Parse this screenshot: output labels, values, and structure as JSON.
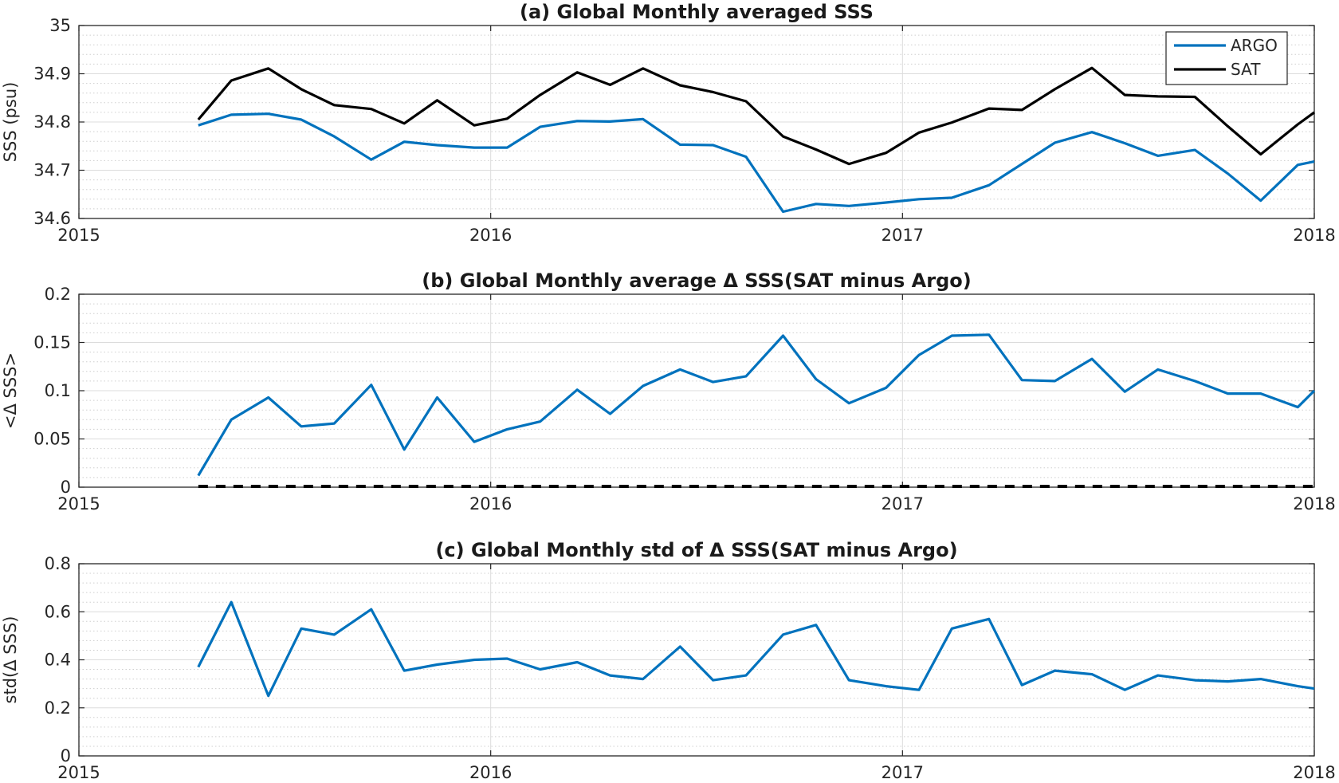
{
  "chart_data": [
    {
      "type": "line",
      "title": "(a) Global Monthly averaged SSS",
      "xlabel": "",
      "ylabel": "SSS (psu)",
      "xlim": [
        2015,
        2018
      ],
      "ylim": [
        34.6,
        35
      ],
      "x_ticks": [
        "2015",
        "2016",
        "2017",
        "2018"
      ],
      "y_ticks": [
        "34.6",
        "34.7",
        "34.8",
        "34.9",
        "35"
      ],
      "grid": true,
      "legend": "top-right",
      "x": [
        2015.29,
        2015.37,
        2015.46,
        2015.54,
        2015.62,
        2015.71,
        2015.79,
        2015.87,
        2015.96,
        2016.04,
        2016.12,
        2016.21,
        2016.29,
        2016.37,
        2016.46,
        2016.54,
        2016.62,
        2016.71,
        2016.79,
        2016.87,
        2016.96,
        2017.04,
        2017.12,
        2017.21,
        2017.29,
        2017.37,
        2017.46,
        2017.54,
        2017.62,
        2017.71,
        2017.79,
        2017.87,
        2017.96,
        2018.0
      ],
      "series": [
        {
          "name": "ARGO",
          "color": "#0072BD",
          "values": [
            34.793,
            34.815,
            34.817,
            34.805,
            34.77,
            34.722,
            34.759,
            34.752,
            34.747,
            34.747,
            34.79,
            34.802,
            34.801,
            34.806,
            34.753,
            34.752,
            34.728,
            34.614,
            34.63,
            34.626,
            34.633,
            34.64,
            34.643,
            34.669,
            34.713,
            34.757,
            34.779,
            34.756,
            34.73,
            34.742,
            34.693,
            34.637,
            34.711,
            34.718
          ]
        },
        {
          "name": "SAT",
          "color": "#000000",
          "values": [
            34.805,
            34.886,
            34.911,
            34.868,
            34.835,
            34.827,
            34.797,
            34.845,
            34.793,
            34.807,
            34.856,
            34.903,
            34.877,
            34.911,
            34.876,
            34.862,
            34.843,
            34.77,
            34.743,
            34.713,
            34.736,
            34.778,
            34.799,
            34.828,
            34.825,
            34.868,
            34.912,
            34.856,
            34.853,
            34.852,
            34.791,
            34.733,
            34.795,
            34.82
          ]
        }
      ]
    },
    {
      "type": "line",
      "title": "(b) Global Monthly average Δ SSS(SAT minus Argo)",
      "xlabel": "",
      "ylabel": "<Δ SSS>",
      "xlim": [
        2015,
        2018
      ],
      "ylim": [
        0,
        0.2
      ],
      "x_ticks": [
        "2015",
        "2016",
        "2017",
        "2018"
      ],
      "y_ticks": [
        "0",
        "0.05",
        "0.1",
        "0.15",
        "0.2"
      ],
      "grid": true,
      "reference_line": {
        "y": 0,
        "style": "dashed",
        "color": "#000000"
      },
      "x": [
        2015.29,
        2015.37,
        2015.46,
        2015.54,
        2015.62,
        2015.71,
        2015.79,
        2015.87,
        2015.96,
        2016.04,
        2016.12,
        2016.21,
        2016.29,
        2016.37,
        2016.46,
        2016.54,
        2016.62,
        2016.71,
        2016.79,
        2016.87,
        2016.96,
        2017.04,
        2017.12,
        2017.21,
        2017.29,
        2017.37,
        2017.46,
        2017.54,
        2017.62,
        2017.71,
        2017.79,
        2017.87,
        2017.96,
        2018.0
      ],
      "series": [
        {
          "color": "#0072BD",
          "values": [
            0.012,
            0.07,
            0.093,
            0.063,
            0.066,
            0.106,
            0.039,
            0.093,
            0.047,
            0.06,
            0.068,
            0.101,
            0.076,
            0.105,
            0.122,
            0.109,
            0.115,
            0.157,
            0.112,
            0.087,
            0.103,
            0.137,
            0.157,
            0.158,
            0.111,
            0.11,
            0.133,
            0.099,
            0.122,
            0.11,
            0.097,
            0.097,
            0.083,
            0.1
          ]
        }
      ]
    },
    {
      "type": "line",
      "title": "(c) Global Monthly std of Δ SSS(SAT minus Argo)",
      "xlabel": "",
      "ylabel": "std(Δ SSS)",
      "xlim": [
        2015,
        2018
      ],
      "ylim": [
        0,
        0.8
      ],
      "x_ticks": [
        "2015",
        "2016",
        "2017",
        "2018"
      ],
      "y_ticks": [
        "0",
        "0.2",
        "0.4",
        "0.6",
        "0.8"
      ],
      "grid": true,
      "x": [
        2015.29,
        2015.37,
        2015.46,
        2015.54,
        2015.62,
        2015.71,
        2015.79,
        2015.87,
        2015.96,
        2016.04,
        2016.12,
        2016.21,
        2016.29,
        2016.37,
        2016.46,
        2016.54,
        2016.62,
        2016.71,
        2016.79,
        2016.87,
        2016.96,
        2017.04,
        2017.12,
        2017.21,
        2017.29,
        2017.37,
        2017.46,
        2017.54,
        2017.62,
        2017.71,
        2017.79,
        2017.87,
        2017.96,
        2018.0
      ],
      "series": [
        {
          "color": "#0072BD",
          "values": [
            0.37,
            0.64,
            0.25,
            0.53,
            0.505,
            0.61,
            0.355,
            0.38,
            0.4,
            0.405,
            0.36,
            0.39,
            0.335,
            0.32,
            0.455,
            0.315,
            0.335,
            0.505,
            0.545,
            0.315,
            0.29,
            0.275,
            0.53,
            0.57,
            0.295,
            0.355,
            0.34,
            0.275,
            0.335,
            0.315,
            0.31,
            0.32,
            0.29,
            0.28
          ]
        }
      ]
    }
  ]
}
